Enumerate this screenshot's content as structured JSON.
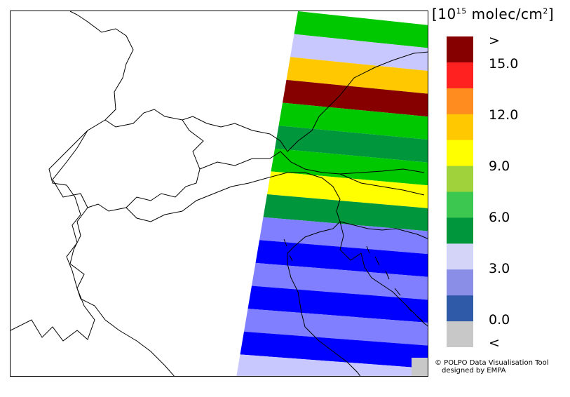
{
  "map": {
    "swath_colors": [
      "#00c800",
      "#c8c8ff",
      "#ffc800",
      "#870000",
      "#00c800",
      "#00963c",
      "#00c800",
      "#ffff00",
      "#00963c",
      "#7f7fff",
      "#0000ff",
      "#7f7fff",
      "#0000ff",
      "#7f7fff",
      "#0000ff",
      "#c8c8ff"
    ],
    "land_border_color": "#000000"
  },
  "legend": {
    "title_prefix": "[10",
    "title_exp": "15",
    "title_unit": " molec/cm",
    "title_unit_exp": "2",
    "title_suffix": "]",
    "colors": [
      "#870000",
      "#ff2020",
      "#ff8c1e",
      "#ffc800",
      "#ffff00",
      "#a0d23c",
      "#3cc850",
      "#00963c",
      "#d4d4f8",
      "#8a8ee6",
      "#2e5aa8",
      "#c8c8c8"
    ],
    "labels": [
      ">",
      "15.0",
      "12.0",
      "9.0",
      "6.0",
      "3.0",
      "0.0",
      "<"
    ]
  },
  "credit": {
    "line1": "© POLPO Data Visualisation Tool",
    "line2": "designed by EMPA"
  }
}
